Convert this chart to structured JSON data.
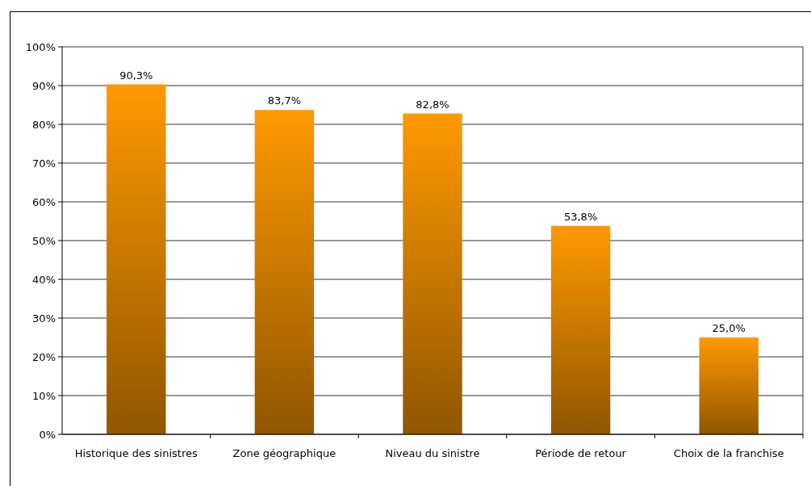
{
  "chart_data": {
    "type": "bar",
    "categories": [
      "Historique des sinistres",
      "Zone géographique",
      "Niveau du sinistre",
      "Période de retour",
      "Choix de la franchise"
    ],
    "values": [
      90.3,
      83.7,
      82.8,
      53.8,
      25.0
    ],
    "value_labels": [
      "90,3%",
      "83,7%",
      "82,8%",
      "53,8%",
      "25,0%"
    ],
    "color": "#ff9900",
    "ylim": [
      0,
      100
    ],
    "yticks": [
      {
        "value": 0,
        "label": "0%"
      },
      {
        "value": 10,
        "label": "10%"
      },
      {
        "value": 20,
        "label": "20%"
      },
      {
        "value": 30,
        "label": "30%"
      },
      {
        "value": 40,
        "label": "40%"
      },
      {
        "value": 50,
        "label": "50%"
      },
      {
        "value": 60,
        "label": "60%"
      },
      {
        "value": 70,
        "label": "70%"
      },
      {
        "value": 80,
        "label": "80%"
      },
      {
        "value": 90,
        "label": "90%"
      },
      {
        "value": 100,
        "label": "100%"
      }
    ],
    "grid": "y"
  }
}
